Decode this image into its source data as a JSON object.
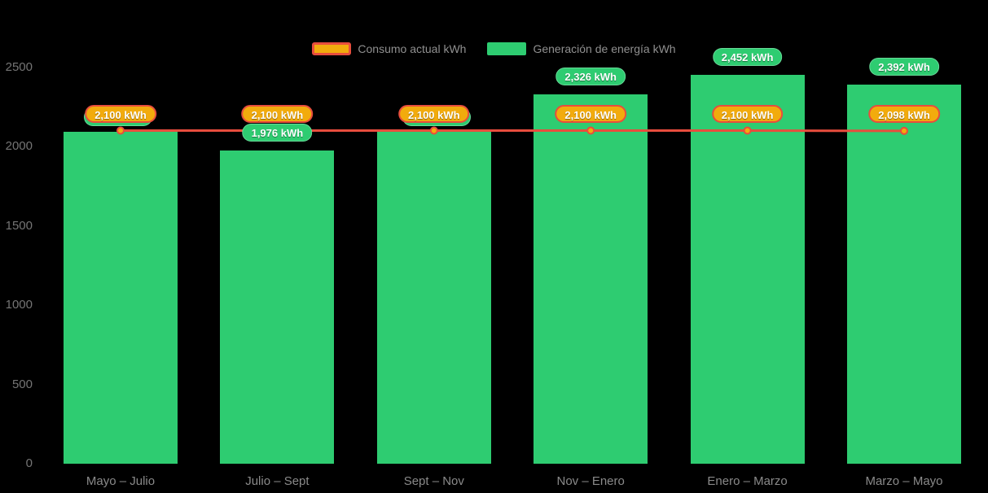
{
  "legend": {
    "items": [
      {
        "label": "Consumo actual kWh",
        "swatch": "consumption-swatch"
      },
      {
        "label": "Generación de energía kWh",
        "swatch": "generation-swatch"
      }
    ]
  },
  "colors": {
    "background": "#000000",
    "bar_green": "#2ecc71",
    "line_red": "#e84d3d",
    "badge_orange": "#f2ab0d",
    "axis_text": "#757575",
    "category_text": "#8a8a8a",
    "legend_text": "#909090"
  },
  "chart_data": {
    "type": "bar",
    "categories": [
      "Mayo – Julio",
      "Julio – Sept",
      "Sept – Nov",
      "Nov – Enero",
      "Enero – Marzo",
      "Marzo – Mayo"
    ],
    "series": [
      {
        "name": "Consumo actual kWh",
        "type": "line",
        "color": "#e84d3d",
        "marker_color": "#f2ab0d",
        "values": [
          2100,
          2100,
          2100,
          2100,
          2100,
          2098
        ],
        "labels": [
          "2,100 kWh",
          "2,100 kWh",
          "2,100 kWh",
          "2,100 kWh",
          "2,100 kWh",
          "2,098 kWh"
        ]
      },
      {
        "name": "Generación de energía kWh",
        "type": "bar",
        "color": "#2ecc71",
        "values": [
          2090,
          1976,
          2090,
          2326,
          2452,
          2392
        ],
        "labels": [
          "",
          "1,976 kWh",
          "",
          "2,326 kWh",
          "2,452 kWh",
          "2,392 kWh"
        ],
        "label_hidden": [
          true,
          false,
          true,
          false,
          false,
          false
        ]
      }
    ],
    "ylim": [
      0,
      2500
    ],
    "yticks": [
      0,
      500,
      1000,
      1500,
      2000,
      2500
    ],
    "xlabel": "",
    "ylabel": "",
    "title": "",
    "grid": false,
    "legend_position": "top-center"
  }
}
